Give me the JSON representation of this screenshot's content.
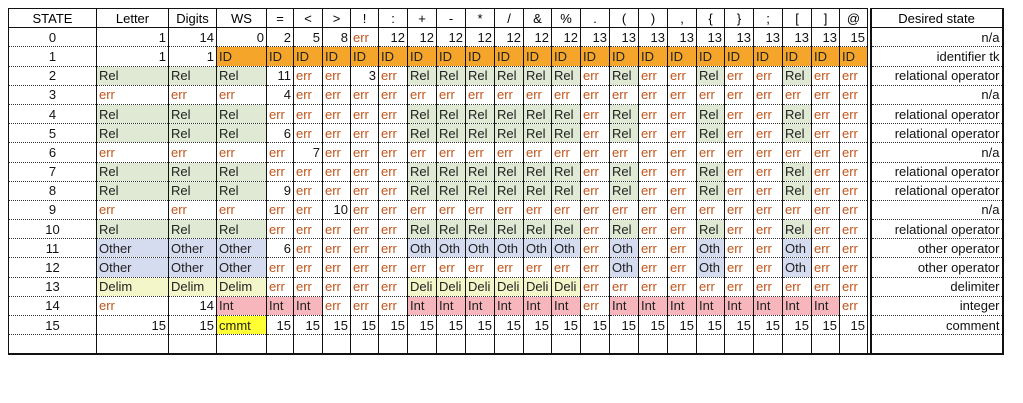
{
  "headers": [
    "STATE",
    "Letter",
    "Digits",
    "WS",
    "=",
    "<",
    ">",
    "!",
    ":",
    "+",
    "-",
    "*",
    "/",
    "&",
    "%",
    ".",
    "(",
    ")",
    ",",
    "{",
    "}",
    ";",
    "[",
    "]",
    "@"
  ],
  "desired_header": "Desired state",
  "rows": [
    {
      "state": "0",
      "cells": [
        "1",
        "14",
        "0",
        "2",
        "5",
        "8",
        "err",
        "12",
        "12",
        "12",
        "12",
        "12",
        "12",
        "12",
        "13",
        "13",
        "13",
        "13",
        "13",
        "13",
        "13",
        "13",
        "13",
        "15"
      ],
      "desired": "n/a"
    },
    {
      "state": "1",
      "cells": [
        "1",
        "1",
        "ID",
        "ID",
        "ID",
        "ID",
        "ID",
        "ID",
        "ID",
        "ID",
        "ID",
        "ID",
        "ID",
        "ID",
        "ID",
        "ID",
        "ID",
        "ID",
        "ID",
        "ID",
        "ID",
        "ID",
        "ID",
        "ID"
      ],
      "desired": "identifier tk"
    },
    {
      "state": "2",
      "cells": [
        "Rel",
        "Rel",
        "Rel",
        "11",
        "err",
        "err",
        "3",
        "err",
        "Rel",
        "Rel",
        "Rel",
        "Rel",
        "Rel",
        "Rel",
        "err",
        "Rel",
        "err",
        "err",
        "Rel",
        "err",
        "err",
        "Rel",
        "err",
        "err"
      ],
      "desired": "relational operator"
    },
    {
      "state": "3",
      "cells": [
        "err",
        "err",
        "err",
        "4",
        "err",
        "err",
        "err",
        "err",
        "err",
        "err",
        "err",
        "err",
        "err",
        "err",
        "err",
        "err",
        "err",
        "err",
        "err",
        "err",
        "err",
        "err",
        "err",
        "err"
      ],
      "desired": "n/a"
    },
    {
      "state": "4",
      "cells": [
        "Rel",
        "Rel",
        "Rel",
        "err",
        "err",
        "err",
        "err",
        "err",
        "Rel",
        "Rel",
        "Rel",
        "Rel",
        "Rel",
        "Rel",
        "err",
        "Rel",
        "err",
        "err",
        "Rel",
        "err",
        "err",
        "Rel",
        "err",
        "err"
      ],
      "desired": "relational operator"
    },
    {
      "state": "5",
      "cells": [
        "Rel",
        "Rel",
        "Rel",
        "6",
        "err",
        "err",
        "err",
        "err",
        "Rel",
        "Rel",
        "Rel",
        "Rel",
        "Rel",
        "Rel",
        "err",
        "Rel",
        "err",
        "err",
        "Rel",
        "err",
        "err",
        "Rel",
        "err",
        "err"
      ],
      "desired": "relational operator"
    },
    {
      "state": "6",
      "cells": [
        "err",
        "err",
        "err",
        "err",
        "7",
        "err",
        "err",
        "err",
        "err",
        "err",
        "err",
        "err",
        "err",
        "err",
        "err",
        "err",
        "err",
        "err",
        "err",
        "err",
        "err",
        "err",
        "err",
        "err"
      ],
      "desired": "n/a"
    },
    {
      "state": "7",
      "cells": [
        "Rel",
        "Rel",
        "Rel",
        "err",
        "err",
        "err",
        "err",
        "err",
        "Rel",
        "Rel",
        "Rel",
        "Rel",
        "Rel",
        "Rel",
        "err",
        "Rel",
        "err",
        "err",
        "Rel",
        "err",
        "err",
        "Rel",
        "err",
        "err"
      ],
      "desired": "relational operator"
    },
    {
      "state": "8",
      "cells": [
        "Rel",
        "Rel",
        "Rel",
        "9",
        "err",
        "err",
        "err",
        "err",
        "Rel",
        "Rel",
        "Rel",
        "Rel",
        "Rel",
        "Rel",
        "err",
        "Rel",
        "err",
        "err",
        "Rel",
        "err",
        "err",
        "Rel",
        "err",
        "err"
      ],
      "desired": "relational operator"
    },
    {
      "state": "9",
      "cells": [
        "err",
        "err",
        "err",
        "err",
        "err",
        "10",
        "err",
        "err",
        "err",
        "err",
        "err",
        "err",
        "err",
        "err",
        "err",
        "err",
        "err",
        "err",
        "err",
        "err",
        "err",
        "err",
        "err",
        "err"
      ],
      "desired": "n/a"
    },
    {
      "state": "10",
      "cells": [
        "Rel",
        "Rel",
        "Rel",
        "err",
        "err",
        "err",
        "err",
        "err",
        "Rel",
        "Rel",
        "Rel",
        "Rel",
        "Rel",
        "Rel",
        "err",
        "Rel",
        "err",
        "err",
        "Rel",
        "err",
        "err",
        "Rel",
        "err",
        "err"
      ],
      "desired": "relational operator"
    },
    {
      "state": "11",
      "cells": [
        "Other",
        "Other",
        "Other",
        "6",
        "err",
        "err",
        "err",
        "err",
        "Oth",
        "Oth",
        "Oth",
        "Oth",
        "Oth",
        "Oth",
        "err",
        "Oth",
        "err",
        "err",
        "Oth",
        "err",
        "err",
        "Oth",
        "err",
        "err"
      ],
      "desired": "other operator"
    },
    {
      "state": "12",
      "cells": [
        "Other",
        "Other",
        "Other",
        "err",
        "err",
        "err",
        "err",
        "err",
        "err",
        "err",
        "err",
        "err",
        "err",
        "err",
        "err",
        "Oth",
        "err",
        "err",
        "Oth",
        "err",
        "err",
        "Oth",
        "err",
        "err"
      ],
      "desired": "other operator"
    },
    {
      "state": "13",
      "cells": [
        "Delim",
        "Delim",
        "Delim",
        "err",
        "err",
        "err",
        "err",
        "err",
        "Deli",
        "Deli",
        "Deli",
        "Deli",
        "Deli",
        "Deli",
        "err",
        "err",
        "err",
        "err",
        "err",
        "err",
        "err",
        "err",
        "err",
        "err"
      ],
      "desired": "delimiter"
    },
    {
      "state": "14",
      "cells": [
        "err",
        "14",
        "Int",
        "Int",
        "Int",
        "err",
        "err",
        "err",
        "Int",
        "Int",
        "Int",
        "Int",
        "Int",
        "Int",
        "err",
        "Int",
        "Int",
        "Int",
        "Int",
        "Int",
        "Int",
        "Int",
        "Int",
        "err"
      ],
      "desired": "integer"
    },
    {
      "state": "15",
      "cells": [
        "15",
        "15",
        "cmmt",
        "15",
        "15",
        "15",
        "15",
        "15",
        "15",
        "15",
        "15",
        "15",
        "15",
        "15",
        "15",
        "15",
        "15",
        "15",
        "15",
        "15",
        "15",
        "15",
        "15",
        "15"
      ],
      "desired": "comment"
    }
  ],
  "colors": {
    "ID": "#f5a52a",
    "Rel": "#dfe9d3",
    "Other": "#d6dcf0",
    "Delim": "#f2f6c8",
    "Int": "#f6b6bb",
    "cmmt": "#ffff33",
    "err": "#c0541a"
  }
}
